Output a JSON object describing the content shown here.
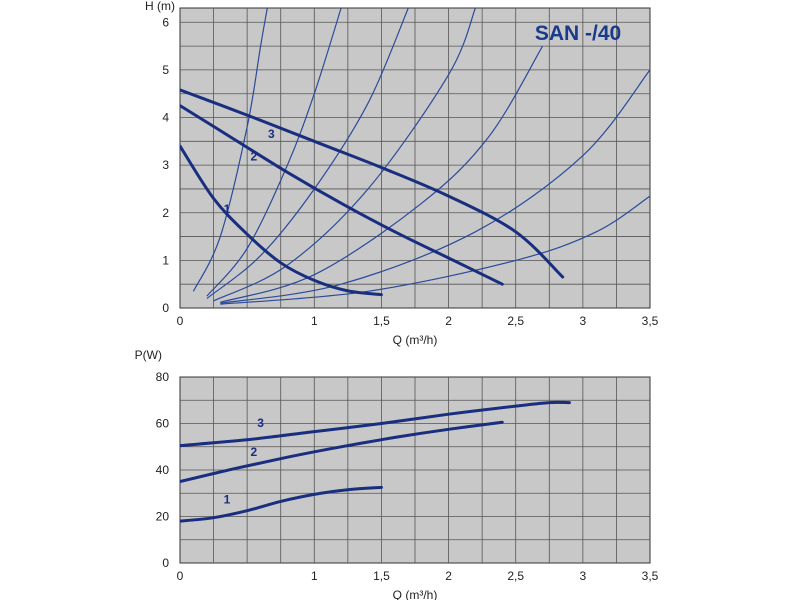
{
  "colors": {
    "plot_bg": "#c8c8c8",
    "grid": "#555555",
    "curve": "#1a2e80",
    "system_curve": "#2a4a9a",
    "title": "#1a3a8c"
  },
  "chart_data": [
    {
      "type": "line",
      "title": "SAN -/40",
      "xlabel": "Q (m³/h)",
      "ylabel": "H (m)",
      "xlim": [
        0,
        3.5
      ],
      "ylim": [
        0,
        6.3
      ],
      "x_ticks": [
        "0",
        "1",
        "1,5",
        "2",
        "2,5",
        "3",
        "3,5"
      ],
      "x_tick_values": [
        0,
        1,
        1.5,
        2,
        2.5,
        3,
        3.5
      ],
      "y_ticks": [
        "0",
        "1",
        "2",
        "3",
        "4",
        "5",
        "6"
      ],
      "y_tick_values": [
        0,
        1,
        2,
        3,
        4,
        5,
        6
      ],
      "grid": true,
      "series": [
        {
          "name": "1",
          "points": [
            [
              0,
              3.4
            ],
            [
              0.25,
              2.3
            ],
            [
              0.5,
              1.55
            ],
            [
              0.75,
              0.95
            ],
            [
              1.0,
              0.58
            ],
            [
              1.25,
              0.36
            ],
            [
              1.5,
              0.28
            ]
          ],
          "label_at": [
            0.35,
            2.0
          ]
        },
        {
          "name": "2",
          "points": [
            [
              0,
              4.25
            ],
            [
              0.4,
              3.55
            ],
            [
              0.8,
              2.85
            ],
            [
              1.2,
              2.2
            ],
            [
              1.6,
              1.6
            ],
            [
              2.0,
              1.05
            ],
            [
              2.4,
              0.5
            ]
          ],
          "label_at": [
            0.55,
            3.1
          ]
        },
        {
          "name": "3",
          "points": [
            [
              0,
              4.58
            ],
            [
              0.5,
              4.05
            ],
            [
              1.0,
              3.5
            ],
            [
              1.5,
              2.95
            ],
            [
              2.0,
              2.35
            ],
            [
              2.5,
              1.6
            ],
            [
              2.85,
              0.65
            ]
          ],
          "label_at": [
            0.68,
            3.57
          ]
        }
      ],
      "system_curves": [
        [
          [
            0.1,
            0.35
          ],
          [
            0.3,
            1.5
          ],
          [
            0.5,
            3.8
          ],
          [
            0.6,
            5.5
          ],
          [
            0.65,
            6.3
          ]
        ],
        [
          [
            0.2,
            0.25
          ],
          [
            0.5,
            1.25
          ],
          [
            0.8,
            3.0
          ],
          [
            1.0,
            4.5
          ],
          [
            1.2,
            6.3
          ]
        ],
        [
          [
            0.2,
            0.2
          ],
          [
            0.6,
            1.1
          ],
          [
            1.0,
            2.5
          ],
          [
            1.4,
            4.3
          ],
          [
            1.7,
            6.3
          ]
        ],
        [
          [
            0.25,
            0.15
          ],
          [
            0.8,
            0.9
          ],
          [
            1.4,
            2.5
          ],
          [
            2.0,
            4.9
          ],
          [
            2.2,
            6.3
          ]
        ],
        [
          [
            0.3,
            0.12
          ],
          [
            1.0,
            0.7
          ],
          [
            1.8,
            2.2
          ],
          [
            2.3,
            3.6
          ],
          [
            2.7,
            5.5
          ]
        ],
        [
          [
            0.3,
            0.1
          ],
          [
            1.2,
            0.5
          ],
          [
            2.2,
            1.6
          ],
          [
            3.0,
            3.2
          ],
          [
            3.5,
            5.0
          ]
        ],
        [
          [
            0.3,
            0.08
          ],
          [
            1.4,
            0.35
          ],
          [
            2.5,
            1.0
          ],
          [
            3.1,
            1.6
          ],
          [
            3.5,
            2.35
          ]
        ]
      ]
    },
    {
      "type": "line",
      "title": "",
      "xlabel": "Q (m³/h)",
      "ylabel": "P(W)",
      "xlim": [
        0,
        3.5
      ],
      "ylim": [
        0,
        80
      ],
      "x_ticks": [
        "0",
        "1",
        "1,5",
        "2",
        "2,5",
        "3",
        "3,5"
      ],
      "x_tick_values": [
        0,
        1,
        1.5,
        2,
        2.5,
        3,
        3.5
      ],
      "y_ticks": [
        "0",
        "20",
        "40",
        "60",
        "80"
      ],
      "y_tick_values": [
        0,
        20,
        40,
        60,
        80
      ],
      "grid": true,
      "series": [
        {
          "name": "1",
          "points": [
            [
              0,
              18
            ],
            [
              0.25,
              19.5
            ],
            [
              0.5,
              22.5
            ],
            [
              0.75,
              26.5
            ],
            [
              1.0,
              29.5
            ],
            [
              1.25,
              31.5
            ],
            [
              1.5,
              32.5
            ]
          ],
          "label_at": [
            0.35,
            25.5
          ]
        },
        {
          "name": "2",
          "points": [
            [
              0,
              35
            ],
            [
              0.4,
              40.5
            ],
            [
              0.8,
              45.5
            ],
            [
              1.2,
              50
            ],
            [
              1.6,
              54
            ],
            [
              2.0,
              57.5
            ],
            [
              2.4,
              60.5
            ]
          ],
          "label_at": [
            0.55,
            46
          ]
        },
        {
          "name": "3",
          "points": [
            [
              0,
              50.5
            ],
            [
              0.5,
              53
            ],
            [
              1.0,
              56.5
            ],
            [
              1.5,
              60
            ],
            [
              2.0,
              64
            ],
            [
              2.5,
              67.5
            ],
            [
              2.75,
              69
            ],
            [
              2.9,
              69
            ]
          ],
          "label_at": [
            0.6,
            58.5
          ]
        }
      ]
    }
  ]
}
